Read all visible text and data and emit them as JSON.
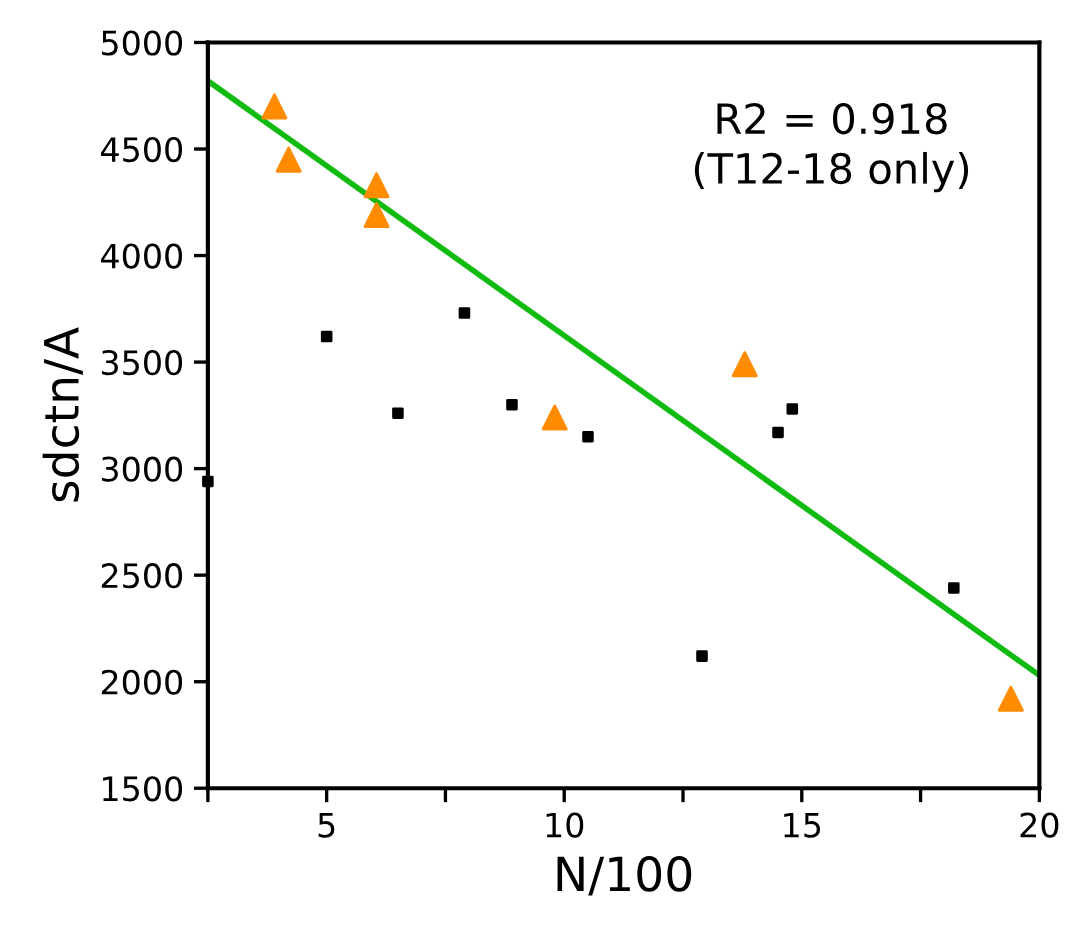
{
  "chart_data": {
    "type": "scatter",
    "xlabel": "N/100",
    "ylabel": "sdctn/A",
    "annotations": [
      "R2 = 0.918\n(T12-18 only)"
    ],
    "series": [
      {
        "color": "#000000",
        "marker": "square",
        "x": [
          2.5,
          5.0,
          6.5,
          7.9,
          8.9,
          10.5,
          12.9,
          14.5,
          14.8,
          18.2
        ],
        "values": [
          2940,
          3620,
          3260,
          3730,
          3300,
          3150,
          2120,
          3170,
          3280,
          2440
        ]
      },
      {
        "color": "#ff8c00",
        "marker": "triangle",
        "x": [
          3.9,
          4.2,
          6.05,
          6.05,
          9.8,
          13.8,
          19.4
        ],
        "values": [
          4700,
          4450,
          4330,
          4190,
          3240,
          3490,
          1920
        ]
      },
      {
        "type": "line",
        "color": "#11bb11",
        "marker": "none",
        "line_style": "solid",
        "x": [
          2.5,
          20
        ],
        "values": [
          4820,
          2030
        ]
      }
    ],
    "xlim": [
      2.5,
      20
    ],
    "ylim": [
      1500,
      5000
    ],
    "xticks": [
      {
        "value": 2.5,
        "label": null
      },
      5,
      {
        "value": 7.5,
        "label": null
      },
      10,
      {
        "value": 12.5,
        "label": null
      },
      15,
      {
        "value": 17.5,
        "label": null
      },
      20
    ],
    "yticks": [
      1500,
      2000,
      2500,
      3000,
      3500,
      4000,
      4500,
      5000
    ],
    "grid": false,
    "legend": false
  }
}
